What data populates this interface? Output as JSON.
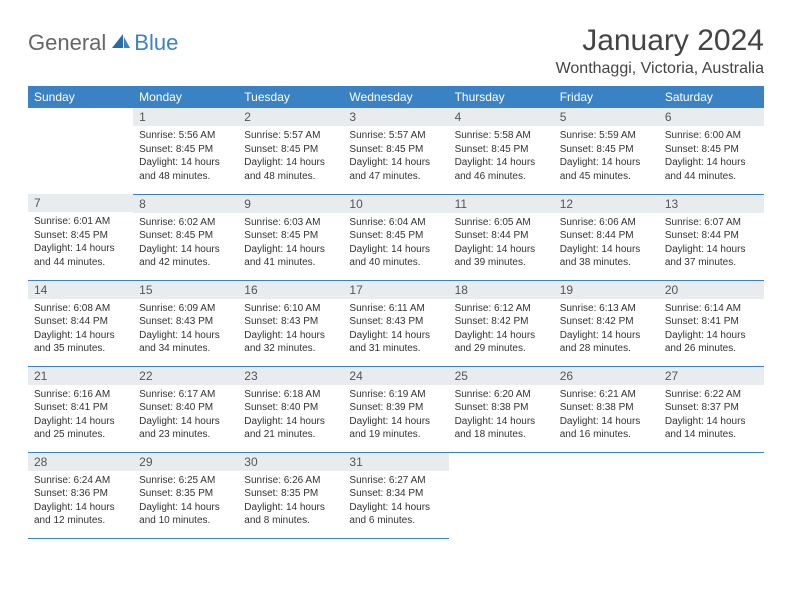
{
  "brand": {
    "general": "General",
    "blue": "Blue"
  },
  "title": "January 2024",
  "location": "Wonthaggi, Victoria, Australia",
  "colors": {
    "header_bg": "#3b82c4",
    "header_fg": "#ffffff",
    "daynum_bg": "#e9ecef",
    "border": "#3b82c4",
    "logo_gray": "#666666",
    "logo_blue": "#3b82c4",
    "background": "#ffffff",
    "text": "#333333"
  },
  "typography": {
    "title_fontsize": 30,
    "location_fontsize": 16,
    "weekday_fontsize": 12,
    "daynum_fontsize": 12,
    "body_fontsize": 10
  },
  "weekdays": [
    "Sunday",
    "Monday",
    "Tuesday",
    "Wednesday",
    "Thursday",
    "Friday",
    "Saturday"
  ],
  "weeks": [
    [
      null,
      {
        "n": "1",
        "sr": "Sunrise: 5:56 AM",
        "ss": "Sunset: 8:45 PM",
        "d1": "Daylight: 14 hours",
        "d2": "and 48 minutes."
      },
      {
        "n": "2",
        "sr": "Sunrise: 5:57 AM",
        "ss": "Sunset: 8:45 PM",
        "d1": "Daylight: 14 hours",
        "d2": "and 48 minutes."
      },
      {
        "n": "3",
        "sr": "Sunrise: 5:57 AM",
        "ss": "Sunset: 8:45 PM",
        "d1": "Daylight: 14 hours",
        "d2": "and 47 minutes."
      },
      {
        "n": "4",
        "sr": "Sunrise: 5:58 AM",
        "ss": "Sunset: 8:45 PM",
        "d1": "Daylight: 14 hours",
        "d2": "and 46 minutes."
      },
      {
        "n": "5",
        "sr": "Sunrise: 5:59 AM",
        "ss": "Sunset: 8:45 PM",
        "d1": "Daylight: 14 hours",
        "d2": "and 45 minutes."
      },
      {
        "n": "6",
        "sr": "Sunrise: 6:00 AM",
        "ss": "Sunset: 8:45 PM",
        "d1": "Daylight: 14 hours",
        "d2": "and 44 minutes."
      }
    ],
    [
      {
        "n": "7",
        "sr": "Sunrise: 6:01 AM",
        "ss": "Sunset: 8:45 PM",
        "d1": "Daylight: 14 hours",
        "d2": "and 44 minutes."
      },
      {
        "n": "8",
        "sr": "Sunrise: 6:02 AM",
        "ss": "Sunset: 8:45 PM",
        "d1": "Daylight: 14 hours",
        "d2": "and 42 minutes."
      },
      {
        "n": "9",
        "sr": "Sunrise: 6:03 AM",
        "ss": "Sunset: 8:45 PM",
        "d1": "Daylight: 14 hours",
        "d2": "and 41 minutes."
      },
      {
        "n": "10",
        "sr": "Sunrise: 6:04 AM",
        "ss": "Sunset: 8:45 PM",
        "d1": "Daylight: 14 hours",
        "d2": "and 40 minutes."
      },
      {
        "n": "11",
        "sr": "Sunrise: 6:05 AM",
        "ss": "Sunset: 8:44 PM",
        "d1": "Daylight: 14 hours",
        "d2": "and 39 minutes."
      },
      {
        "n": "12",
        "sr": "Sunrise: 6:06 AM",
        "ss": "Sunset: 8:44 PM",
        "d1": "Daylight: 14 hours",
        "d2": "and 38 minutes."
      },
      {
        "n": "13",
        "sr": "Sunrise: 6:07 AM",
        "ss": "Sunset: 8:44 PM",
        "d1": "Daylight: 14 hours",
        "d2": "and 37 minutes."
      }
    ],
    [
      {
        "n": "14",
        "sr": "Sunrise: 6:08 AM",
        "ss": "Sunset: 8:44 PM",
        "d1": "Daylight: 14 hours",
        "d2": "and 35 minutes."
      },
      {
        "n": "15",
        "sr": "Sunrise: 6:09 AM",
        "ss": "Sunset: 8:43 PM",
        "d1": "Daylight: 14 hours",
        "d2": "and 34 minutes."
      },
      {
        "n": "16",
        "sr": "Sunrise: 6:10 AM",
        "ss": "Sunset: 8:43 PM",
        "d1": "Daylight: 14 hours",
        "d2": "and 32 minutes."
      },
      {
        "n": "17",
        "sr": "Sunrise: 6:11 AM",
        "ss": "Sunset: 8:43 PM",
        "d1": "Daylight: 14 hours",
        "d2": "and 31 minutes."
      },
      {
        "n": "18",
        "sr": "Sunrise: 6:12 AM",
        "ss": "Sunset: 8:42 PM",
        "d1": "Daylight: 14 hours",
        "d2": "and 29 minutes."
      },
      {
        "n": "19",
        "sr": "Sunrise: 6:13 AM",
        "ss": "Sunset: 8:42 PM",
        "d1": "Daylight: 14 hours",
        "d2": "and 28 minutes."
      },
      {
        "n": "20",
        "sr": "Sunrise: 6:14 AM",
        "ss": "Sunset: 8:41 PM",
        "d1": "Daylight: 14 hours",
        "d2": "and 26 minutes."
      }
    ],
    [
      {
        "n": "21",
        "sr": "Sunrise: 6:16 AM",
        "ss": "Sunset: 8:41 PM",
        "d1": "Daylight: 14 hours",
        "d2": "and 25 minutes."
      },
      {
        "n": "22",
        "sr": "Sunrise: 6:17 AM",
        "ss": "Sunset: 8:40 PM",
        "d1": "Daylight: 14 hours",
        "d2": "and 23 minutes."
      },
      {
        "n": "23",
        "sr": "Sunrise: 6:18 AM",
        "ss": "Sunset: 8:40 PM",
        "d1": "Daylight: 14 hours",
        "d2": "and 21 minutes."
      },
      {
        "n": "24",
        "sr": "Sunrise: 6:19 AM",
        "ss": "Sunset: 8:39 PM",
        "d1": "Daylight: 14 hours",
        "d2": "and 19 minutes."
      },
      {
        "n": "25",
        "sr": "Sunrise: 6:20 AM",
        "ss": "Sunset: 8:38 PM",
        "d1": "Daylight: 14 hours",
        "d2": "and 18 minutes."
      },
      {
        "n": "26",
        "sr": "Sunrise: 6:21 AM",
        "ss": "Sunset: 8:38 PM",
        "d1": "Daylight: 14 hours",
        "d2": "and 16 minutes."
      },
      {
        "n": "27",
        "sr": "Sunrise: 6:22 AM",
        "ss": "Sunset: 8:37 PM",
        "d1": "Daylight: 14 hours",
        "d2": "and 14 minutes."
      }
    ],
    [
      {
        "n": "28",
        "sr": "Sunrise: 6:24 AM",
        "ss": "Sunset: 8:36 PM",
        "d1": "Daylight: 14 hours",
        "d2": "and 12 minutes."
      },
      {
        "n": "29",
        "sr": "Sunrise: 6:25 AM",
        "ss": "Sunset: 8:35 PM",
        "d1": "Daylight: 14 hours",
        "d2": "and 10 minutes."
      },
      {
        "n": "30",
        "sr": "Sunrise: 6:26 AM",
        "ss": "Sunset: 8:35 PM",
        "d1": "Daylight: 14 hours",
        "d2": "and 8 minutes."
      },
      {
        "n": "31",
        "sr": "Sunrise: 6:27 AM",
        "ss": "Sunset: 8:34 PM",
        "d1": "Daylight: 14 hours",
        "d2": "and 6 minutes."
      },
      null,
      null,
      null
    ]
  ]
}
